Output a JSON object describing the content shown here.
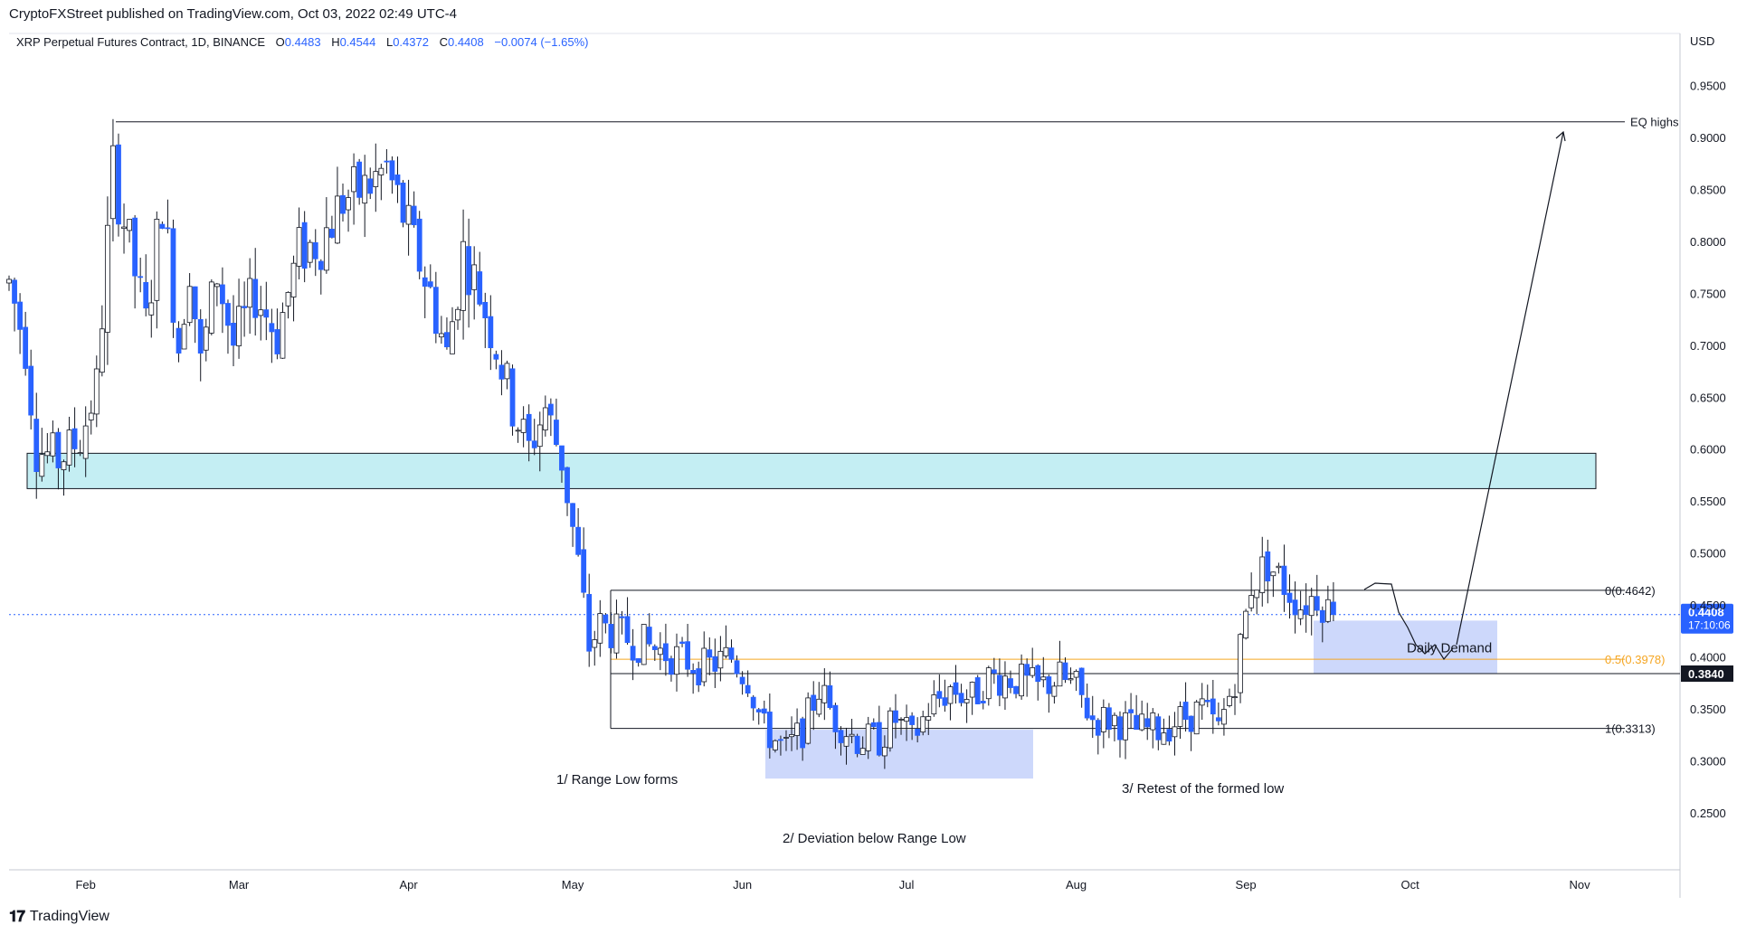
{
  "header": {
    "publisher": "CryptoFXStreet published on TradingView.com, Oct 03, 2022 02:49 UTC-4",
    "symbol": "XRP Perpetual Futures Contract, 1D, BINANCE",
    "ohlc": [
      {
        "k": "O",
        "v": "0.4483"
      },
      {
        "k": "H",
        "v": "0.4544"
      },
      {
        "k": "L",
        "v": "0.4372"
      },
      {
        "k": "C",
        "v": "0.4408"
      }
    ],
    "change": "−0.0074 (−1.65%)"
  },
  "footer": {
    "brand": "TradingView"
  },
  "chart_data": {
    "type": "candlestick",
    "currency": "USD",
    "ylim": [
      0.23,
      0.98
    ],
    "y_ticks": [
      "0.9500",
      "0.9000",
      "0.8500",
      "0.8000",
      "0.7500",
      "0.7000",
      "0.6500",
      "0.6000",
      "0.5500",
      "0.5000",
      "0.4500",
      "0.4000",
      "0.3500",
      "0.3000",
      "0.2500"
    ],
    "x_ticks": [
      {
        "label": "Feb",
        "day": 31
      },
      {
        "label": "Mar",
        "day": 59
      },
      {
        "label": "Apr",
        "day": 90
      },
      {
        "label": "May",
        "day": 120
      },
      {
        "label": "Jun",
        "day": 151
      },
      {
        "label": "Jul",
        "day": 181
      },
      {
        "label": "Aug",
        "day": 212
      },
      {
        "label": "Sep",
        "day": 243
      },
      {
        "label": "Oct",
        "day": 273
      },
      {
        "label": "Nov",
        "day": 304
      }
    ],
    "x_range_days": [
      17,
      322
    ],
    "price_path": [
      [
        17,
        0.76
      ],
      [
        20,
        0.7
      ],
      [
        22,
        0.6
      ],
      [
        26,
        0.59
      ],
      [
        30,
        0.61
      ],
      [
        33,
        0.66
      ],
      [
        36,
        0.87
      ],
      [
        38,
        0.82
      ],
      [
        42,
        0.72
      ],
      [
        45,
        0.84
      ],
      [
        48,
        0.7
      ],
      [
        50,
        0.78
      ],
      [
        52,
        0.68
      ],
      [
        55,
        0.77
      ],
      [
        58,
        0.7
      ],
      [
        62,
        0.75
      ],
      [
        66,
        0.71
      ],
      [
        70,
        0.79
      ],
      [
        74,
        0.8
      ],
      [
        78,
        0.84
      ],
      [
        82,
        0.85
      ],
      [
        86,
        0.87
      ],
      [
        90,
        0.81
      ],
      [
        94,
        0.75
      ],
      [
        97,
        0.69
      ],
      [
        100,
        0.79
      ],
      [
        103,
        0.75
      ],
      [
        106,
        0.7
      ],
      [
        109,
        0.64
      ],
      [
        112,
        0.6
      ],
      [
        115,
        0.64
      ],
      [
        118,
        0.59
      ],
      [
        121,
        0.49
      ],
      [
        123,
        0.41
      ],
      [
        125,
        0.43
      ],
      [
        129,
        0.42
      ],
      [
        134,
        0.41
      ],
      [
        139,
        0.4
      ],
      [
        144,
        0.39
      ],
      [
        149,
        0.4
      ],
      [
        152,
        0.38
      ],
      [
        155,
        0.33
      ],
      [
        159,
        0.31
      ],
      [
        162,
        0.33
      ],
      [
        165,
        0.37
      ],
      [
        168,
        0.34
      ],
      [
        172,
        0.32
      ],
      [
        176,
        0.32
      ],
      [
        179,
        0.34
      ],
      [
        182,
        0.32
      ],
      [
        185,
        0.35
      ],
      [
        189,
        0.37
      ],
      [
        193,
        0.36
      ],
      [
        196,
        0.38
      ],
      [
        200,
        0.38
      ],
      [
        205,
        0.37
      ],
      [
        209,
        0.38
      ],
      [
        212,
        0.37
      ],
      [
        215,
        0.34
      ],
      [
        219,
        0.34
      ],
      [
        223,
        0.33
      ],
      [
        227,
        0.33
      ],
      [
        231,
        0.34
      ],
      [
        235,
        0.35
      ],
      [
        238,
        0.33
      ],
      [
        241,
        0.38
      ],
      [
        244,
        0.47
      ],
      [
        247,
        0.49
      ],
      [
        250,
        0.47
      ],
      [
        253,
        0.45
      ],
      [
        256,
        0.46
      ],
      [
        259,
        0.44
      ]
    ],
    "reference_lines": [
      {
        "label": "EQ highs",
        "value": 0.915
      },
      {
        "label": "0(0.4642)",
        "value": 0.4642
      },
      {
        "label": "0.5(0.3978)",
        "value": 0.3978,
        "color": "#f5a623"
      },
      {
        "label": "1(0.3313)",
        "value": 0.3313
      },
      {
        "label": "0.3840",
        "value": 0.384
      }
    ],
    "current_price": {
      "value": "0.4408",
      "countdown": "17:10:06",
      "color": "#2962ff"
    },
    "zones": [
      {
        "value_low": 0.562,
        "value_high": 0.596,
        "color": "#c4eef3"
      },
      {
        "label": "Daily Demand",
        "value_low": 0.384,
        "value_high": 0.435,
        "color": "#cdd8fb"
      },
      {
        "value_low": 0.283,
        "value_high": 0.33,
        "color": "#cdd8fb"
      }
    ],
    "annotations": [
      "1/ Range Low forms",
      "2/ Deviation below Range Low",
      "3/ Retest of the formed low"
    ],
    "colors": {
      "up": "#ffffff",
      "down": "#2962ff",
      "wick": "#131722"
    }
  }
}
